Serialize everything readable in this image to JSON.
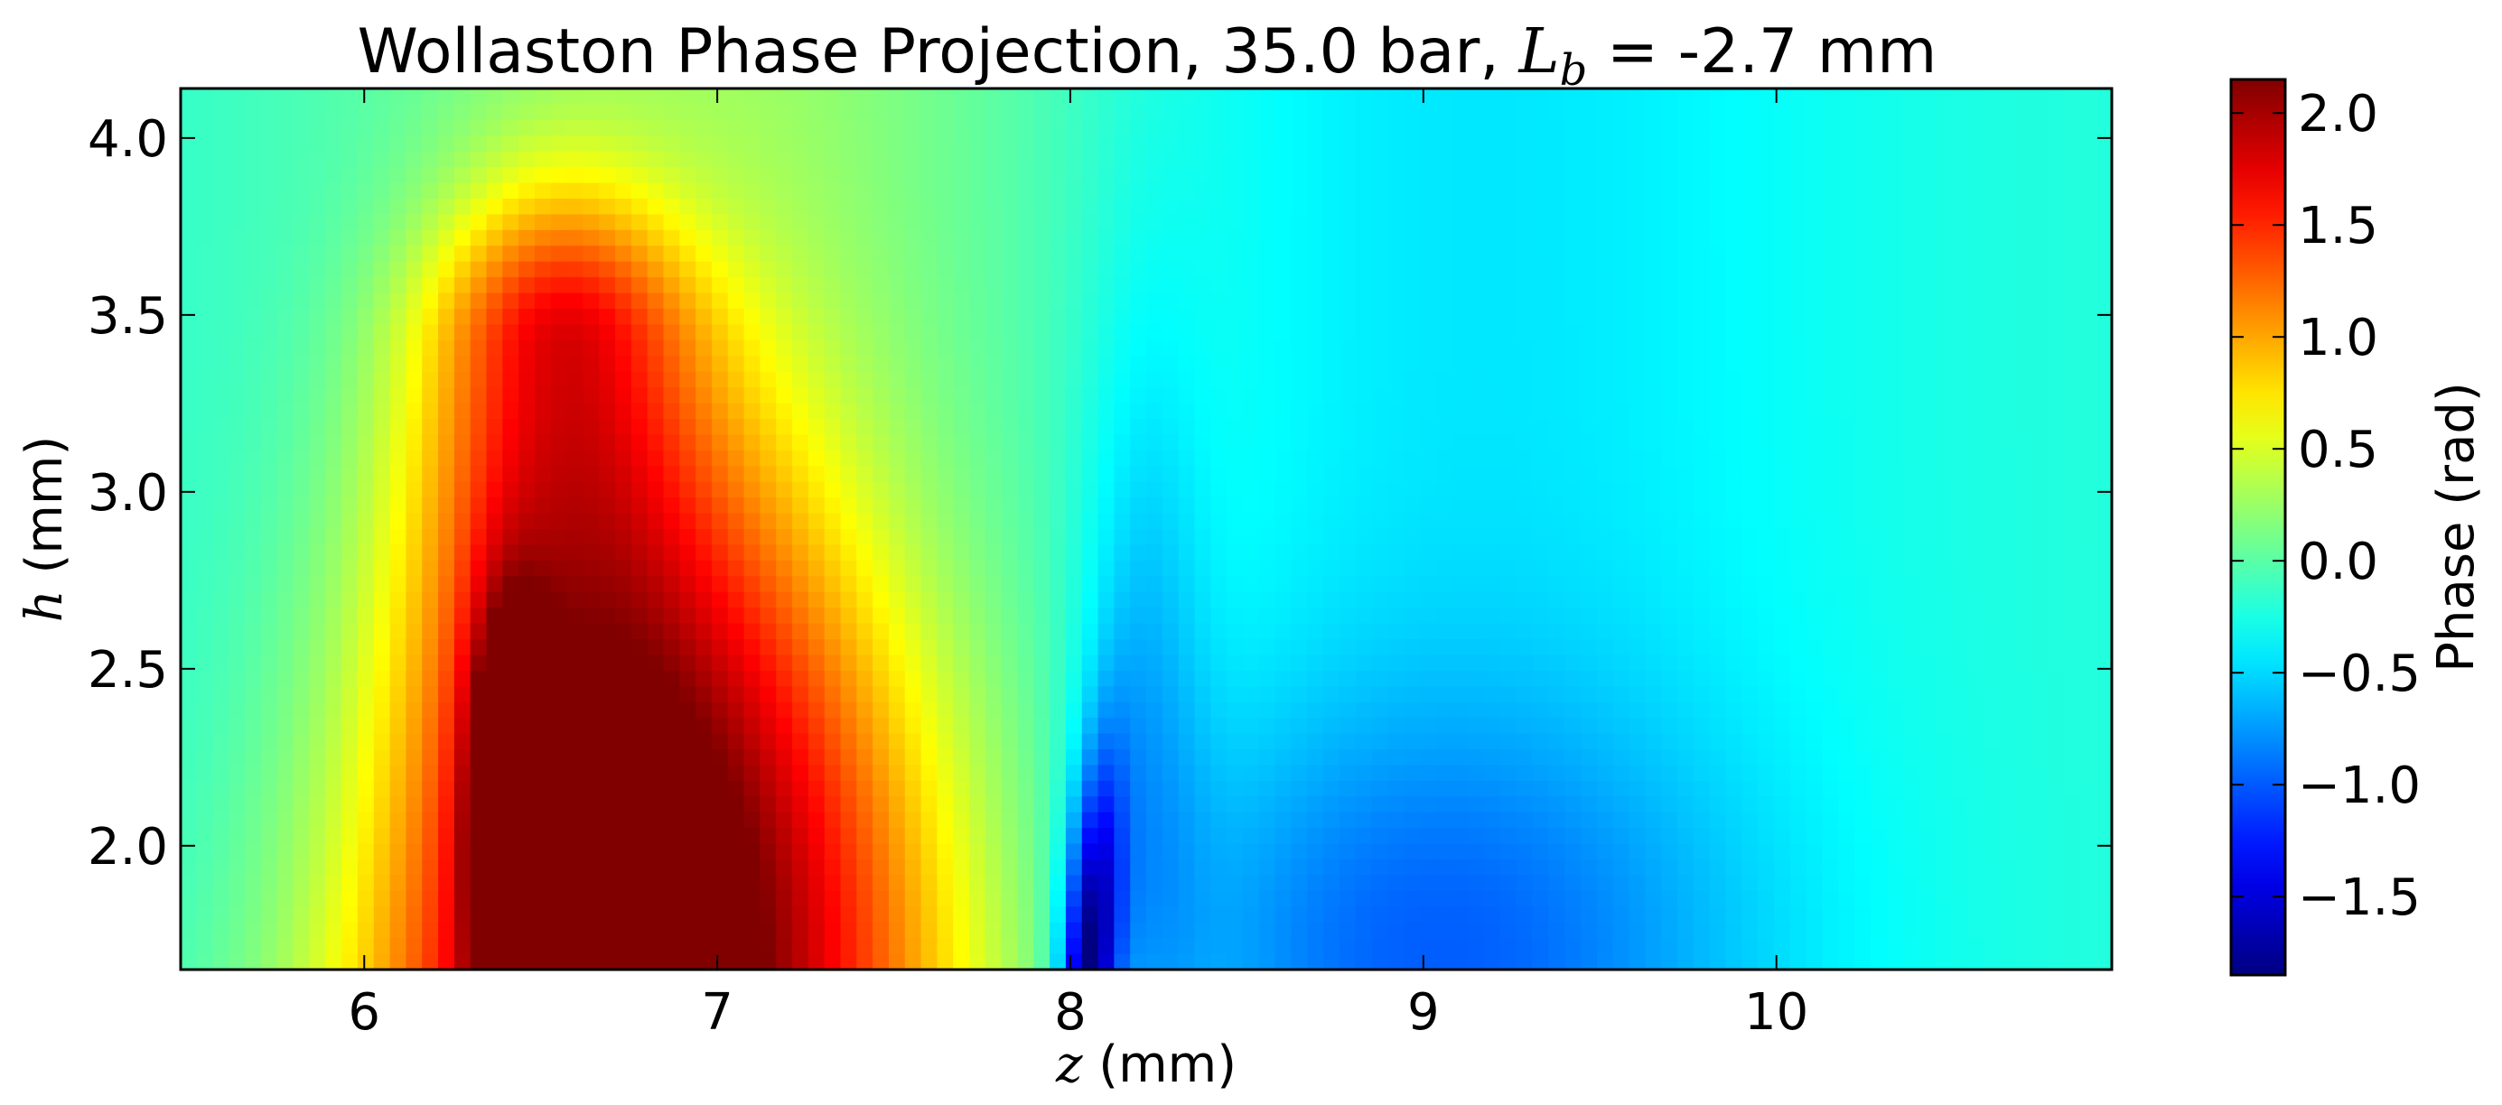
{
  "chart_data": {
    "type": "heatmap",
    "title": "Wollaston Phase Projection, 35.0 bar, ",
    "title_symbol": "L",
    "title_symbol_sub": "b",
    "title_suffix": " = -2.7 mm",
    "xlabel_var": "z",
    "xlabel_unit": " (mm)",
    "ylabel_var": "h",
    "ylabel_unit": " (mm)",
    "xlim": [
      5.48,
      10.95
    ],
    "ylim": [
      1.65,
      4.14
    ],
    "x_ticks": [
      6,
      7,
      8,
      9,
      10
    ],
    "x_tick_labels": [
      "6",
      "7",
      "8",
      "9",
      "10"
    ],
    "y_ticks": [
      2.0,
      2.5,
      3.0,
      3.5,
      4.0
    ],
    "y_tick_labels": [
      "2.0",
      "2.5",
      "3.0",
      "3.5",
      "4.0"
    ],
    "colorbar": {
      "label": "Phase (rad)",
      "range": [
        -1.85,
        2.15
      ],
      "ticks": [
        -1.5,
        -1.0,
        -0.5,
        0.0,
        0.5,
        1.0,
        1.5,
        2.0
      ],
      "tick_labels": [
        "−1.5",
        "−1.0",
        "−0.5",
        "0.0",
        "0.5",
        "1.0",
        "1.5",
        "2.0"
      ],
      "colormap": "jet"
    },
    "grid": false,
    "features": [
      {
        "name": "positive phase plume",
        "z_center": 6.4,
        "h_range": [
          1.65,
          3.9
        ],
        "peak_value": 2.1
      },
      {
        "name": "negative phase plume",
        "z_center": 8.05,
        "h_range": [
          1.65,
          3.4
        ],
        "peak_value": -1.7
      },
      {
        "name": "background",
        "value": -0.2
      }
    ]
  }
}
